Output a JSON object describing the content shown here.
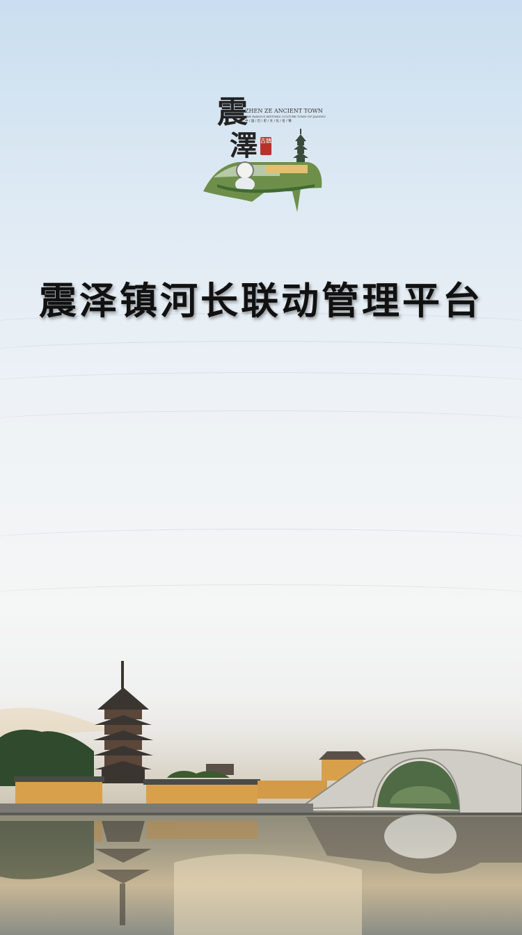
{
  "app": {
    "title": "震泽镇河长联动管理平台"
  },
  "logo": {
    "brush_char_1": "震",
    "brush_char_2": "澤",
    "seal_text": "古鎮",
    "english_title": "ZHEN ZE ANCIENT TOWN",
    "english_subtitle": "THE FAMOUS HISTORIC CULTURE TOWN OF JIANGSU",
    "chinese_subtitle": "中 / 国 / 历 / 史 / 文 / 化 / 名 / 镇"
  },
  "colors": {
    "sky_top": "#c9def0",
    "title_text": "#111111",
    "seal_red": "#b8322a",
    "wall_ochre": "#d9a04c"
  }
}
